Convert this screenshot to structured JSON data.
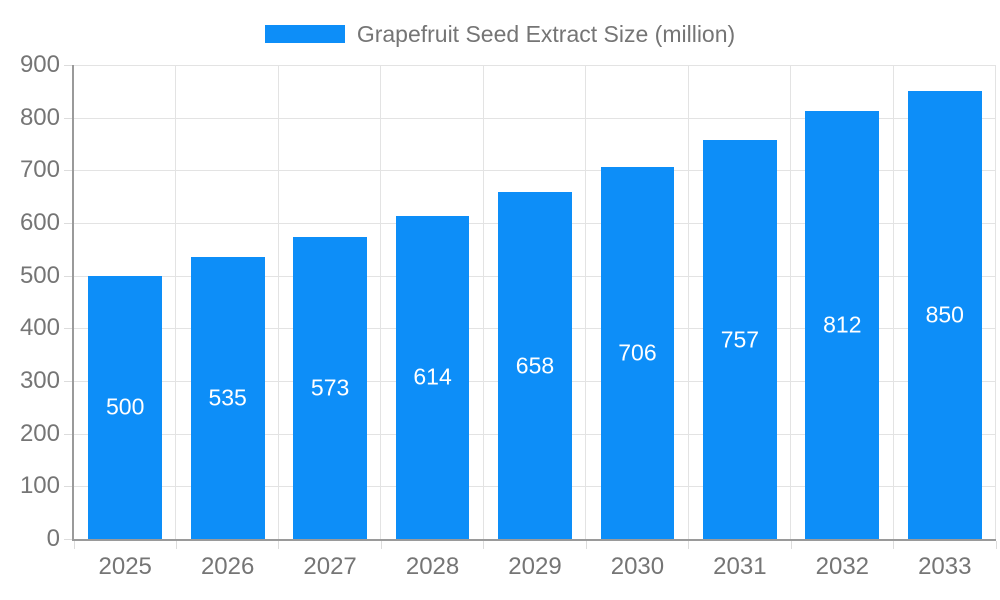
{
  "chart_data": {
    "type": "bar",
    "title": "Grapefruit Seed Extract Size (million)",
    "categories": [
      "2025",
      "2026",
      "2027",
      "2028",
      "2029",
      "2030",
      "2031",
      "2032",
      "2033"
    ],
    "values": [
      500,
      535,
      573,
      614,
      658,
      706,
      757,
      812,
      850
    ],
    "xlabel": "",
    "ylabel": "",
    "ylim": [
      0,
      900
    ],
    "ytick_step": 100,
    "grid": true,
    "legend_position": "top",
    "bar_color": "#0d8ef8",
    "bar_label_color": "#ffffff",
    "axis_text_color": "#757575",
    "grid_color": "#e3e3e3",
    "axis_line_color": "#9a9a9a"
  }
}
